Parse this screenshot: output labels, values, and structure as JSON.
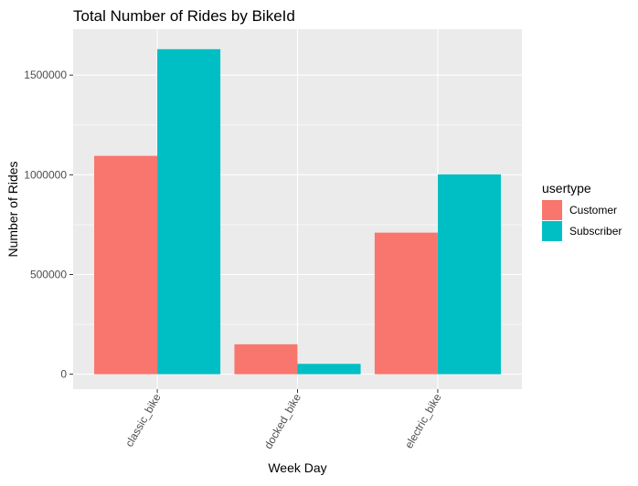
{
  "chart_data": {
    "type": "bar",
    "title": "Total Number of Rides by BikeId",
    "xlabel": "Week Day",
    "ylabel": "Number of Rides",
    "categories": [
      "classic_bike",
      "docked_bike",
      "electric_bike"
    ],
    "series": [
      {
        "name": "Customer",
        "color": "#F8766D",
        "values": [
          1095000,
          150000,
          710000
        ]
      },
      {
        "name": "Subscriber",
        "color": "#00BFC4",
        "values": [
          1630000,
          52000,
          1002000
        ]
      }
    ],
    "ylim": [
      -75000,
      1730000
    ],
    "yticks": [
      0,
      500000,
      1000000,
      1500000
    ],
    "ytick_labels": [
      "0",
      "500000",
      "1000000",
      "1500000"
    ],
    "x_tick_rotation": "60 degrees",
    "legend_title": "usertype",
    "legend_position": "right",
    "grid": true,
    "panel_background": "#EBEBEB",
    "grid_color": "#FFFFFF"
  }
}
